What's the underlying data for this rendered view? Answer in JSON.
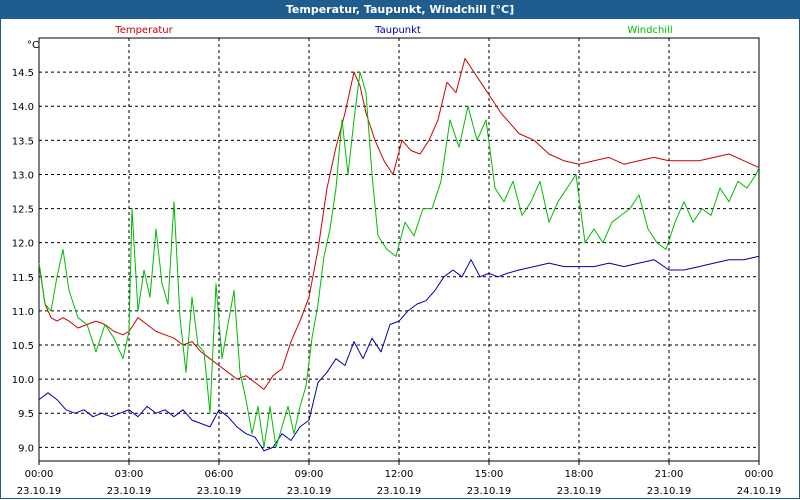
{
  "window": {
    "title": "Temperatur, Taupunkt, Windchill [°C]"
  },
  "chart_data": {
    "type": "line",
    "title": "Temperatur, Taupunkt, Windchill [°C]",
    "ylabel": "°C",
    "ylim": [
      8.8,
      15.0
    ],
    "yticks": [
      "9.0",
      "9.5",
      "10.0",
      "10.5",
      "11.0",
      "11.5",
      "12.0",
      "12.5",
      "13.0",
      "13.5",
      "14.0",
      "14.5"
    ],
    "xlim": [
      0,
      24
    ],
    "xticks": [
      {
        "time": "00:00",
        "date": "23.10.19"
      },
      {
        "time": "03:00",
        "date": "23.10.19"
      },
      {
        "time": "06:00",
        "date": "23.10.19"
      },
      {
        "time": "09:00",
        "date": "23.10.19"
      },
      {
        "time": "12:00",
        "date": "23.10.19"
      },
      {
        "time": "15:00",
        "date": "23.10.19"
      },
      {
        "time": "18:00",
        "date": "23.10.19"
      },
      {
        "time": "21:00",
        "date": "23.10.19"
      },
      {
        "time": "00:00",
        "date": "24.10.19"
      }
    ],
    "series": [
      {
        "name": "Temperatur",
        "color": "#cc0000",
        "x": [
          0,
          0.2,
          0.4,
          0.6,
          0.8,
          1.0,
          1.3,
          1.6,
          1.9,
          2.2,
          2.5,
          2.8,
          3.0,
          3.3,
          3.6,
          3.9,
          4.2,
          4.5,
          4.8,
          5.1,
          5.4,
          5.7,
          6.0,
          6.3,
          6.6,
          6.9,
          7.2,
          7.5,
          7.8,
          8.1,
          8.4,
          8.7,
          9.0,
          9.3,
          9.6,
          9.9,
          10.2,
          10.5,
          10.7,
          10.9,
          11.2,
          11.5,
          11.8,
          12.1,
          12.4,
          12.7,
          13.0,
          13.3,
          13.6,
          13.9,
          14.2,
          14.5,
          14.8,
          15.1,
          15.4,
          15.7,
          16.0,
          16.5,
          17.0,
          17.5,
          18.0,
          18.5,
          19.0,
          19.5,
          20.0,
          20.5,
          21.0,
          21.5,
          22.0,
          22.5,
          23.0,
          23.5,
          24.0
        ],
        "y": [
          11.7,
          11.1,
          10.9,
          10.85,
          10.9,
          10.85,
          10.75,
          10.8,
          10.85,
          10.8,
          10.7,
          10.65,
          10.7,
          10.9,
          10.8,
          10.7,
          10.65,
          10.6,
          10.5,
          10.55,
          10.4,
          10.3,
          10.2,
          10.1,
          10.0,
          10.05,
          9.95,
          9.85,
          10.05,
          10.15,
          10.55,
          10.85,
          11.2,
          11.9,
          12.8,
          13.4,
          13.9,
          14.5,
          14.3,
          13.9,
          13.5,
          13.2,
          13.0,
          13.5,
          13.35,
          13.3,
          13.5,
          13.8,
          14.35,
          14.2,
          14.7,
          14.5,
          14.3,
          14.1,
          13.9,
          13.75,
          13.6,
          13.5,
          13.3,
          13.2,
          13.15,
          13.2,
          13.25,
          13.15,
          13.2,
          13.25,
          13.2,
          13.2,
          13.2,
          13.25,
          13.3,
          13.2,
          13.1
        ]
      },
      {
        "name": "Taupunkt",
        "color": "#0000aa",
        "x": [
          0,
          0.3,
          0.6,
          0.9,
          1.2,
          1.5,
          1.8,
          2.1,
          2.4,
          2.7,
          3.0,
          3.3,
          3.6,
          3.9,
          4.2,
          4.5,
          4.8,
          5.1,
          5.4,
          5.7,
          6.0,
          6.3,
          6.6,
          6.9,
          7.2,
          7.5,
          7.8,
          8.1,
          8.4,
          8.7,
          9.0,
          9.3,
          9.6,
          9.9,
          10.2,
          10.5,
          10.8,
          11.1,
          11.4,
          11.7,
          12.0,
          12.3,
          12.6,
          12.9,
          13.2,
          13.5,
          13.8,
          14.1,
          14.4,
          14.7,
          15.0,
          15.3,
          15.6,
          16.0,
          16.5,
          17.0,
          17.5,
          18.0,
          18.5,
          19.0,
          19.5,
          20.0,
          20.5,
          21.0,
          21.5,
          22.0,
          22.5,
          23.0,
          23.5,
          24.0
        ],
        "y": [
          9.7,
          9.8,
          9.7,
          9.55,
          9.5,
          9.55,
          9.45,
          9.5,
          9.45,
          9.5,
          9.55,
          9.45,
          9.6,
          9.5,
          9.55,
          9.45,
          9.55,
          9.4,
          9.35,
          9.3,
          9.55,
          9.45,
          9.3,
          9.2,
          9.15,
          8.95,
          9.0,
          9.2,
          9.1,
          9.3,
          9.4,
          9.95,
          10.1,
          10.3,
          10.2,
          10.55,
          10.3,
          10.6,
          10.4,
          10.8,
          10.85,
          11.0,
          11.1,
          11.15,
          11.3,
          11.5,
          11.6,
          11.5,
          11.75,
          11.5,
          11.55,
          11.5,
          11.55,
          11.6,
          11.65,
          11.7,
          11.65,
          11.65,
          11.65,
          11.7,
          11.65,
          11.7,
          11.75,
          11.6,
          11.6,
          11.65,
          11.7,
          11.75,
          11.75,
          11.8
        ]
      },
      {
        "name": "Windchill",
        "color": "#00bb00",
        "x": [
          0,
          0.2,
          0.4,
          0.6,
          0.8,
          1.0,
          1.3,
          1.6,
          1.9,
          2.2,
          2.5,
          2.8,
          3.0,
          3.1,
          3.3,
          3.5,
          3.7,
          3.9,
          4.1,
          4.3,
          4.5,
          4.7,
          4.9,
          5.1,
          5.3,
          5.5,
          5.7,
          5.9,
          6.1,
          6.3,
          6.5,
          6.7,
          6.9,
          7.1,
          7.3,
          7.5,
          7.7,
          7.9,
          8.1,
          8.3,
          8.5,
          8.7,
          8.9,
          9.1,
          9.3,
          9.5,
          9.7,
          9.9,
          10.1,
          10.3,
          10.5,
          10.7,
          10.9,
          11.1,
          11.3,
          11.6,
          11.9,
          12.2,
          12.5,
          12.8,
          13.1,
          13.4,
          13.7,
          14.0,
          14.3,
          14.6,
          14.9,
          15.2,
          15.5,
          15.8,
          16.1,
          16.4,
          16.7,
          17.0,
          17.3,
          17.6,
          17.9,
          18.2,
          18.5,
          18.8,
          19.1,
          19.4,
          19.7,
          20.0,
          20.3,
          20.6,
          20.9,
          21.2,
          21.5,
          21.8,
          22.1,
          22.4,
          22.7,
          23.0,
          23.3,
          23.6,
          23.9,
          24.0
        ],
        "y": [
          11.7,
          11.1,
          11.0,
          11.5,
          11.9,
          11.3,
          10.9,
          10.8,
          10.4,
          10.8,
          10.6,
          10.3,
          10.7,
          12.5,
          11.0,
          11.6,
          11.2,
          12.2,
          11.4,
          11.1,
          12.6,
          10.9,
          10.1,
          11.2,
          10.5,
          10.4,
          9.5,
          11.4,
          10.3,
          10.8,
          11.3,
          10.1,
          9.7,
          9.2,
          9.6,
          9.0,
          9.6,
          9.0,
          9.3,
          9.6,
          9.2,
          9.6,
          9.9,
          10.6,
          11.1,
          11.8,
          12.2,
          12.8,
          13.8,
          13.0,
          13.8,
          14.5,
          14.2,
          13.0,
          12.1,
          11.9,
          11.8,
          12.3,
          12.1,
          12.5,
          12.5,
          12.9,
          13.8,
          13.4,
          14.0,
          13.5,
          13.8,
          12.8,
          12.6,
          12.9,
          12.4,
          12.6,
          12.9,
          12.3,
          12.6,
          12.8,
          13.0,
          12.0,
          12.2,
          12.0,
          12.3,
          12.4,
          12.5,
          12.7,
          12.2,
          12.0,
          11.9,
          12.3,
          12.6,
          12.3,
          12.5,
          12.4,
          12.8,
          12.6,
          12.9,
          12.8,
          13.0,
          13.1
        ]
      }
    ]
  }
}
